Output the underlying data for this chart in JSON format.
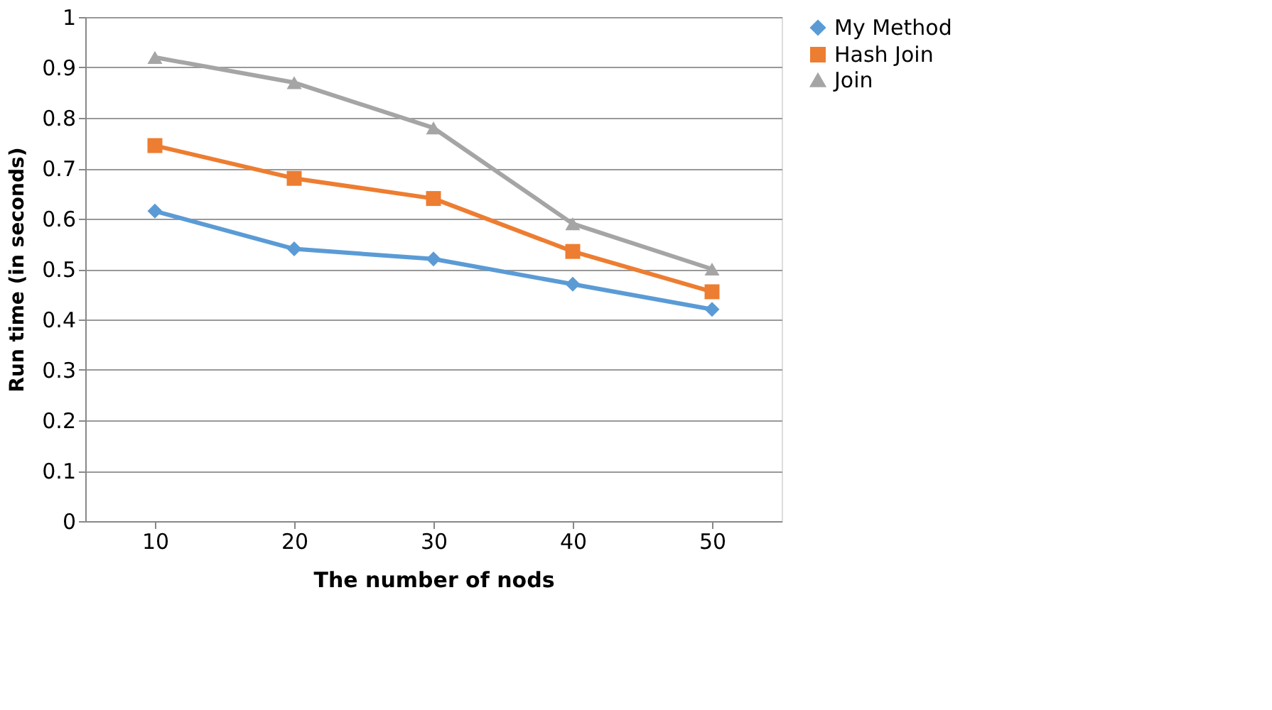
{
  "chart_data": {
    "type": "line",
    "xlabel": "The number of nods",
    "ylabel": "Run time (in seconds)",
    "categories": [
      "10",
      "20",
      "30",
      "40",
      "50"
    ],
    "series": [
      {
        "name": "My Method",
        "color": "#5b9bd5",
        "marker": "diamond",
        "values": [
          0.615,
          0.54,
          0.52,
          0.47,
          0.42
        ]
      },
      {
        "name": "Hash Join",
        "color": "#ed7d31",
        "marker": "square",
        "values": [
          0.745,
          0.68,
          0.64,
          0.535,
          0.455
        ]
      },
      {
        "name": "Join",
        "color": "#a5a5a5",
        "marker": "triangle",
        "values": [
          0.92,
          0.87,
          0.78,
          0.59,
          0.5
        ]
      }
    ],
    "ylim": [
      0,
      1
    ],
    "yticks": [
      0,
      0.1,
      0.2,
      0.3,
      0.4,
      0.5,
      0.6,
      0.7,
      0.8,
      0.9,
      1
    ],
    "grid": "y",
    "legend": "right",
    "line_style": "solid"
  }
}
